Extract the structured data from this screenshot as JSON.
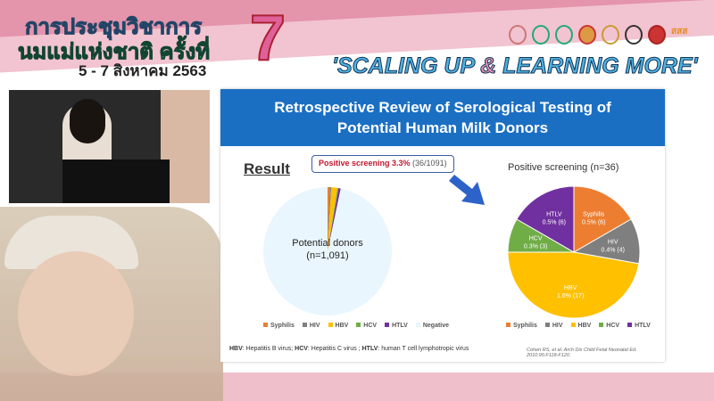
{
  "banner": {
    "title_line1": "การประชุมวิชาการ",
    "title_line2": "นมแม่แห่งชาติ ครั้งที่",
    "date": "5 - 7 สิงหาคม 2563",
    "edition": "7",
    "slogan_part1": "'SCALING UP ",
    "slogan_amp": "&",
    "slogan_part2": " LEARNING MORE'",
    "logo_count": 8
  },
  "slide": {
    "title_line1": "Retrospective Review of Serological Testing of",
    "title_line2": "Potential Human Milk Donors",
    "result_label": "Result",
    "callout_bold": "Positive screening 3.3%",
    "callout_rest": " (36/1091)",
    "left_pie_label1": "Potential donors",
    "left_pie_label2": "(n=1,091)",
    "right_title": "Positive screening (n=36)",
    "footnote": [
      {
        "b": "HBV",
        "t": ": Hepatitis B virus; "
      },
      {
        "b": "HCV",
        "t": ": Hepatitis C virus ; "
      },
      {
        "b": "HTLV",
        "t": ": human T cell lymphotropic virus"
      }
    ],
    "citation": "Cohen RS, et al. Arch Dis Child Fetal Neonatal Ed. 2010;95:F118-F120."
  },
  "chart_data": [
    {
      "type": "pie",
      "title": "",
      "categories": [
        "Syphilis",
        "HIV",
        "HBV",
        "HCV",
        "HTLV",
        "Negative"
      ],
      "values": [
        6,
        4,
        17,
        3,
        6,
        1055
      ],
      "colors": [
        "#ed7d31",
        "#7f7f7f",
        "#ffc000",
        "#70ad47",
        "#7030a0",
        "#eaf6fd"
      ],
      "center_label": [
        "Potential donors",
        "(n=1,091)"
      ],
      "legend_position": "bottom"
    },
    {
      "type": "pie",
      "title": "Positive screening (n=36)",
      "categories": [
        "Syphilis",
        "HIV",
        "HBV",
        "HCV",
        "HTLV"
      ],
      "values": [
        6,
        4,
        17,
        3,
        6
      ],
      "data_labels": [
        "0.5% (6)",
        "0.4% (4)",
        "1.6% (17)",
        "0.3% (3)",
        "0.5% (6)"
      ],
      "colors": [
        "#ed7d31",
        "#7f7f7f",
        "#ffc000",
        "#70ad47",
        "#7030a0"
      ],
      "legend_position": "bottom"
    }
  ]
}
